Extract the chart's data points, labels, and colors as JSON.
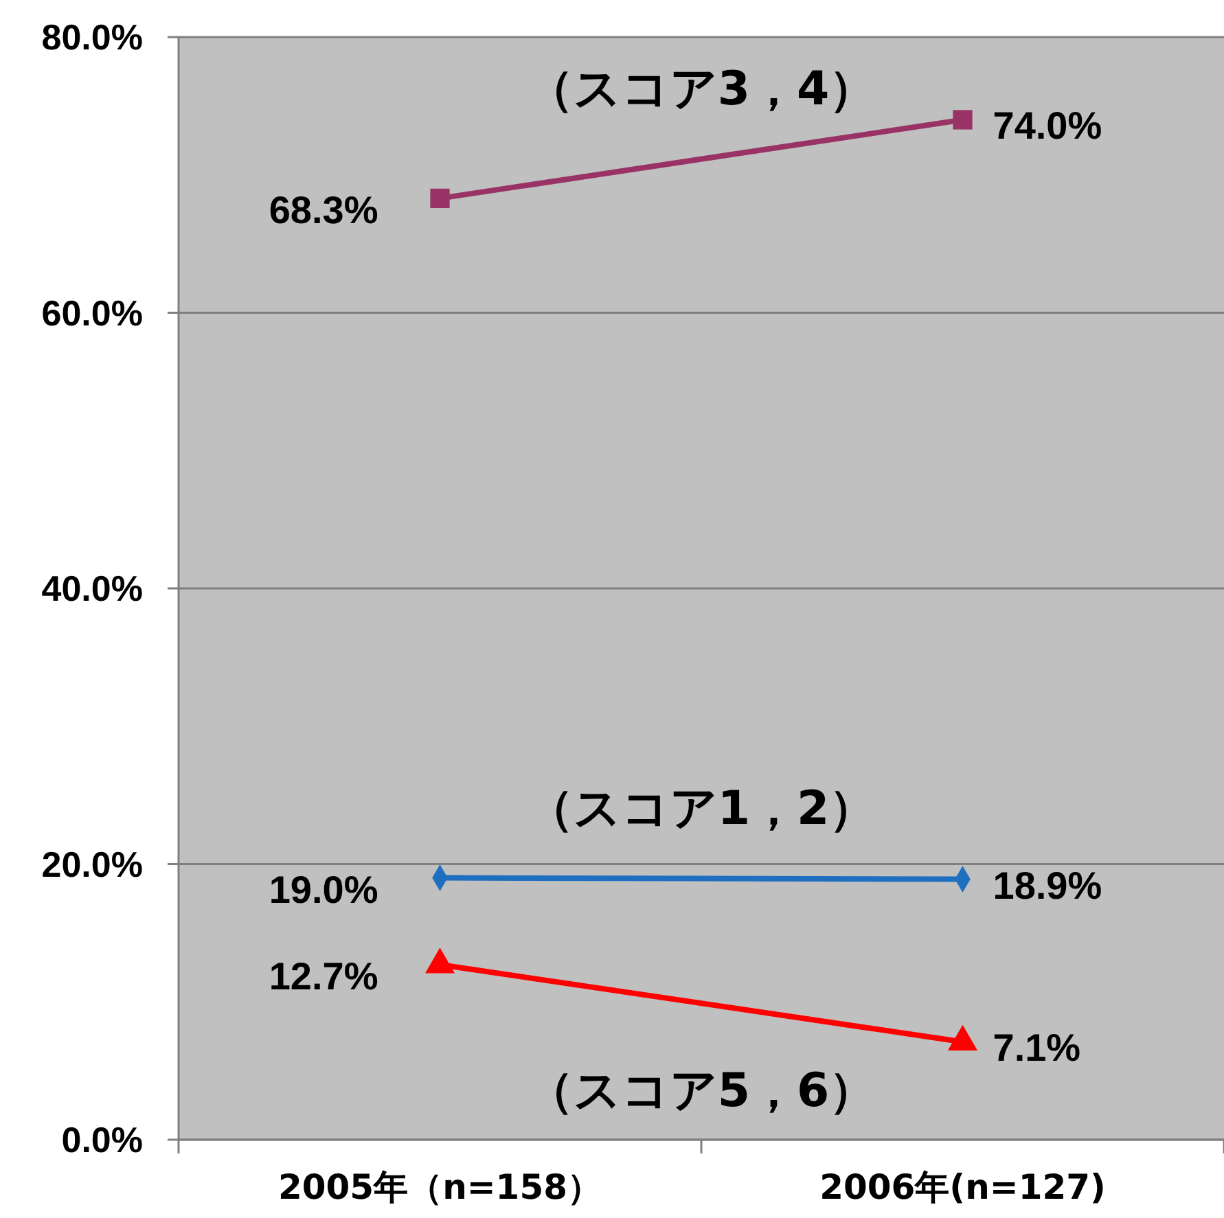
{
  "chart_data": {
    "type": "line",
    "categories": [
      "2005年（n=158）",
      "2006年(n=127)"
    ],
    "ylim": [
      0,
      80
    ],
    "yticks": [
      {
        "value": 0,
        "label": "0.0%"
      },
      {
        "value": 20,
        "label": "20.0%"
      },
      {
        "value": 40,
        "label": "40.0%"
      },
      {
        "value": 60,
        "label": "60.0%"
      },
      {
        "value": 80,
        "label": "80.0%"
      }
    ],
    "grid": "y",
    "series": [
      {
        "name": "（スコア3，4）",
        "color": "#993366",
        "marker": "square",
        "values": [
          68.3,
          74.0
        ],
        "value_labels": [
          "68.3%",
          "74.0%"
        ]
      },
      {
        "name": "（スコア1，2）",
        "color": "#1f6fc0",
        "marker": "diamond",
        "values": [
          19.0,
          18.9
        ],
        "value_labels": [
          "19.0%",
          "18.9%"
        ]
      },
      {
        "name": "（スコア5，6）",
        "color": "#ff0000",
        "marker": "triangle",
        "values": [
          12.7,
          7.1
        ],
        "value_labels": [
          "12.7%",
          "7.1%"
        ]
      }
    ]
  }
}
